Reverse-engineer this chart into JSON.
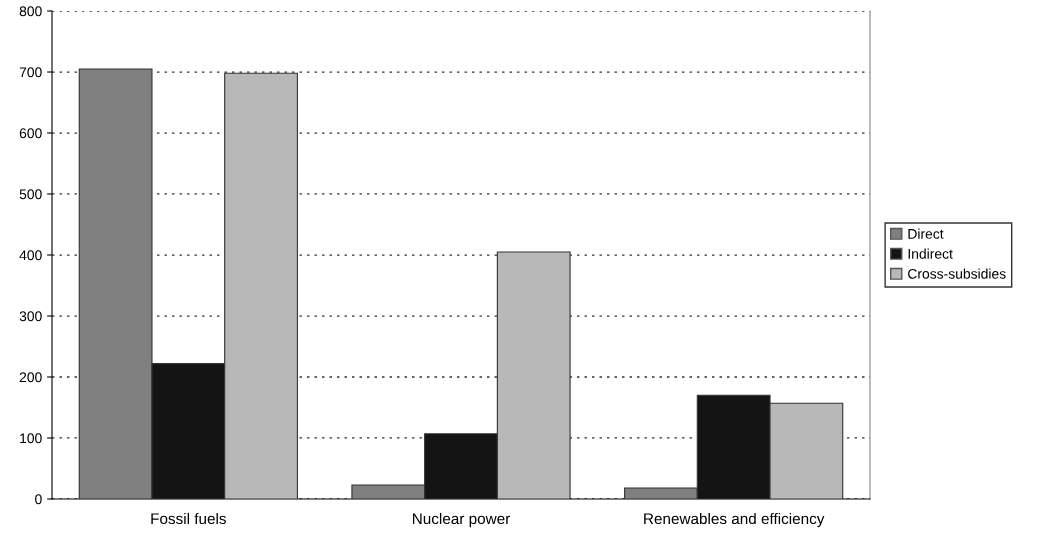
{
  "chart_data": {
    "type": "bar",
    "categories": [
      "Fossil fuels",
      "Nuclear power",
      "Renewables and efficiency"
    ],
    "series": [
      {
        "name": "Direct",
        "color": "#808080",
        "values": [
          705,
          23,
          18
        ]
      },
      {
        "name": "Indirect",
        "color": "#141414",
        "values": [
          222,
          107,
          170
        ]
      },
      {
        "name": "Cross-subsidies",
        "color": "#b8b8b8",
        "values": [
          698,
          405,
          157
        ]
      }
    ],
    "ylim": [
      0,
      800
    ],
    "yticks": [
      0,
      100,
      200,
      300,
      400,
      500,
      600,
      700,
      800
    ],
    "grid": "y",
    "legend": "right"
  }
}
